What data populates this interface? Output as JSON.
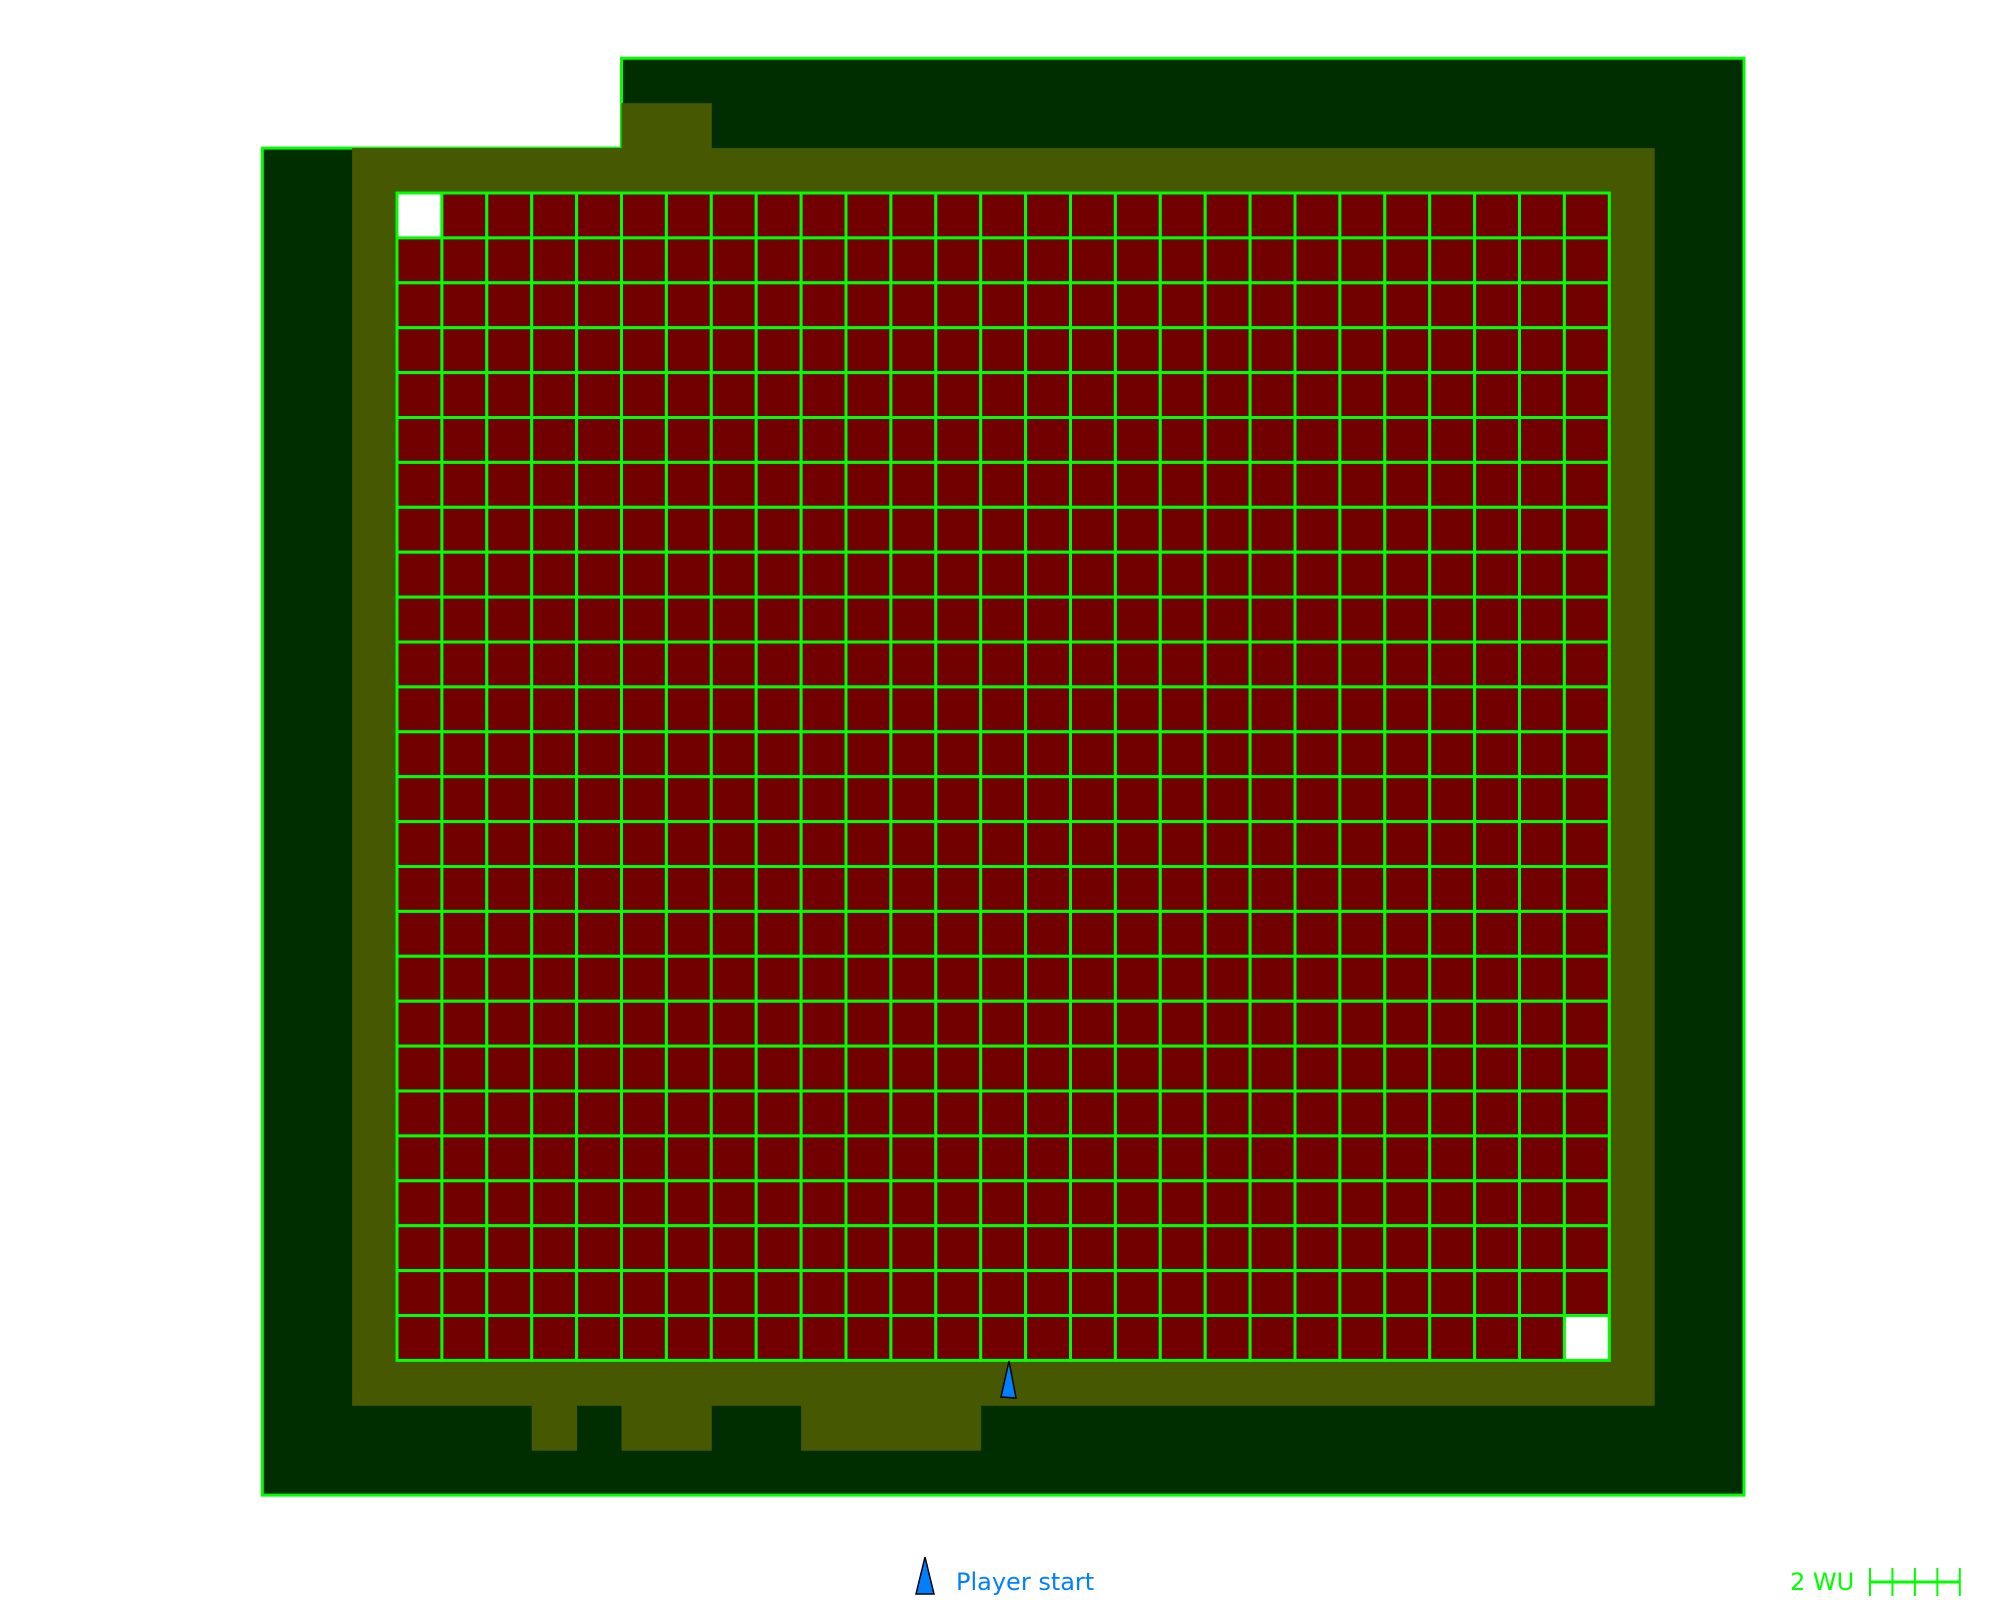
{
  "map": {
    "columns": 27,
    "rows": 26,
    "open_cells": [
      [
        0,
        0
      ],
      [
        26,
        25
      ]
    ],
    "colors": {
      "outer": "#002e00",
      "corridor": "#465800",
      "cell": "#720000",
      "open_cell": "#ffffff",
      "wall_line": "#00ff00",
      "player": "#0080ff"
    }
  },
  "legend": {
    "player_start_label": "Player start",
    "player_icon": "player-start-triangle"
  },
  "scale_bar": {
    "label": "2 WU",
    "units": 2
  }
}
